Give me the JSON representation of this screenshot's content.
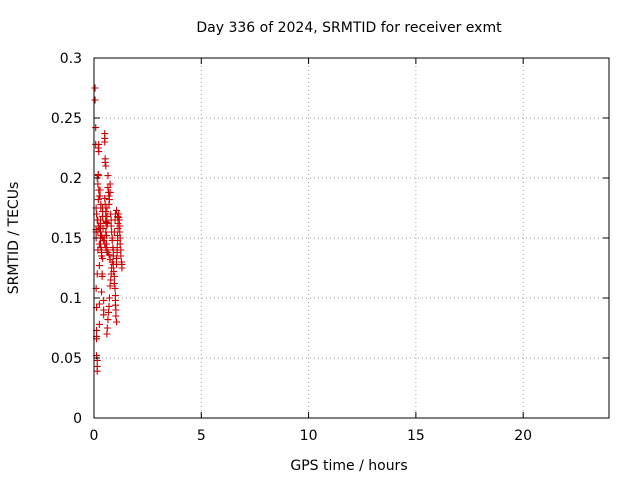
{
  "chart_data": {
    "type": "scatter",
    "title": "Day 336 of 2024, SRMTID for receiver exmt",
    "xlabel": "GPS time / hours",
    "ylabel": "SRMTID / TECUs",
    "xlim": [
      0,
      24
    ],
    "ylim": [
      0,
      0.3
    ],
    "x_ticks": [
      0,
      5,
      10,
      15,
      20
    ],
    "x_tick_labels": [
      "0",
      "5",
      "10",
      "15",
      "20"
    ],
    "y_ticks": [
      0,
      0.05,
      0.1,
      0.15,
      0.2,
      0.25,
      0.3
    ],
    "y_tick_labels": [
      "0",
      "0.05",
      "0.1",
      "0.15",
      "0.2",
      "0.25",
      "0.3"
    ],
    "grid": true,
    "marker": "+",
    "marker_color": "#cc0000",
    "series": [
      {
        "x": [
          0.05,
          0.05,
          0.08,
          0.08,
          0.1,
          0.1,
          0.1,
          0.1,
          0.12,
          0.12,
          0.12,
          0.12,
          0.12,
          0.15,
          0.15,
          0.15,
          0.15,
          0.18,
          0.18,
          0.18,
          0.2,
          0.2,
          0.2,
          0.2,
          0.22,
          0.22,
          0.25,
          0.25,
          0.25,
          0.25,
          0.28,
          0.28,
          0.3,
          0.3,
          0.3,
          0.32,
          0.32,
          0.35,
          0.35,
          0.35,
          0.38,
          0.38,
          0.4,
          0.4,
          0.4,
          0.42,
          0.45,
          0.45,
          0.45,
          0.48,
          0.5,
          0.5,
          0.5,
          0.52,
          0.52,
          0.55,
          0.55,
          0.55,
          0.58,
          0.58,
          0.6,
          0.6,
          0.62,
          0.62,
          0.65,
          0.65,
          0.68,
          0.7,
          0.7,
          0.72,
          0.75,
          0.75,
          0.78,
          0.8,
          0.8,
          0.82,
          0.85,
          0.85,
          0.88,
          0.9,
          0.9,
          0.92,
          0.95,
          0.95,
          0.98,
          1.0,
          1.0,
          1.0,
          1.02,
          1.02,
          1.05,
          1.05,
          1.05,
          1.08,
          1.08,
          1.1,
          1.1,
          1.12,
          1.12,
          1.15,
          1.15,
          1.18,
          1.2,
          1.2,
          1.22,
          1.22,
          1.25,
          1.25,
          1.28,
          1.3,
          1.3,
          0.5,
          0.52,
          0.55,
          0.55,
          0.58,
          0.6,
          0.3,
          0.3,
          0.32,
          0.35,
          0.4,
          0.6,
          0.62,
          0.65,
          0.68,
          0.7,
          0.72,
          0.75,
          0.78,
          0.8,
          0.82,
          0.85,
          0.9,
          0.95,
          0.98,
          1.0,
          1.05,
          1.1,
          0.15,
          0.18,
          0.22,
          0.25,
          0.1,
          0.12,
          0.15,
          0.2,
          0.25,
          0.3,
          0.35,
          0.4,
          0.45,
          0.5,
          0.55,
          0.6,
          0.65,
          0.7,
          0.75
        ],
        "y": [
          0.275,
          0.265,
          0.242,
          0.228,
          0.155,
          0.157,
          0.15,
          0.108,
          0.092,
          0.068,
          0.066,
          0.073,
          0.052,
          0.048,
          0.043,
          0.039,
          0.12,
          0.14,
          0.165,
          0.155,
          0.203,
          0.202,
          0.182,
          0.225,
          0.228,
          0.222,
          0.145,
          0.127,
          0.095,
          0.078,
          0.185,
          0.19,
          0.165,
          0.162,
          0.16,
          0.175,
          0.178,
          0.135,
          0.14,
          0.105,
          0.12,
          0.118,
          0.172,
          0.175,
          0.168,
          0.158,
          0.098,
          0.09,
          0.086,
          0.15,
          0.233,
          0.237,
          0.23,
          0.213,
          0.216,
          0.21,
          0.164,
          0.155,
          0.152,
          0.145,
          0.175,
          0.168,
          0.162,
          0.138,
          0.202,
          0.192,
          0.188,
          0.185,
          0.178,
          0.182,
          0.195,
          0.188,
          0.17,
          0.165,
          0.16,
          0.155,
          0.15,
          0.148,
          0.142,
          0.135,
          0.128,
          0.122,
          0.118,
          0.112,
          0.108,
          0.102,
          0.098,
          0.094,
          0.09,
          0.085,
          0.08,
          0.128,
          0.133,
          0.138,
          0.142,
          0.148,
          0.152,
          0.158,
          0.162,
          0.167,
          0.17,
          0.165,
          0.16,
          0.155,
          0.15,
          0.145,
          0.14,
          0.135,
          0.13,
          0.128,
          0.125,
          0.183,
          0.178,
          0.172,
          0.168,
          0.163,
          0.16,
          0.15,
          0.145,
          0.142,
          0.138,
          0.133,
          0.07,
          0.075,
          0.082,
          0.088,
          0.093,
          0.1,
          0.11,
          0.115,
          0.12,
          0.125,
          0.13,
          0.14,
          0.155,
          0.165,
          0.17,
          0.173,
          0.168,
          0.2,
          0.195,
          0.19,
          0.185,
          0.175,
          0.17,
          0.165,
          0.16,
          0.158,
          0.155,
          0.152,
          0.15,
          0.148,
          0.145,
          0.142,
          0.14,
          0.138,
          0.136,
          0.132
        ]
      }
    ]
  }
}
